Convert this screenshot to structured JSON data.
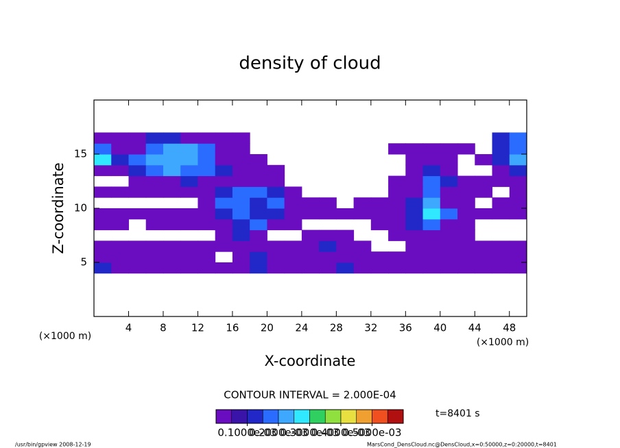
{
  "chart_data": {
    "type": "contour",
    "title": "density of cloud",
    "x_label": "X-coordinate",
    "y_label": "Z-coordinate",
    "x_unit": "(×1000 m)",
    "y_unit": "(×1000 m)",
    "xlim": [
      0,
      50
    ],
    "ylim": [
      0,
      20
    ],
    "xticks": [
      4,
      8,
      12,
      16,
      20,
      24,
      28,
      32,
      36,
      40,
      44,
      48
    ],
    "yticks": [
      5,
      10,
      15
    ],
    "x_edges": [
      0,
      2,
      4,
      6,
      8,
      10,
      12,
      14,
      16,
      18,
      20,
      22,
      24,
      26,
      28,
      30,
      32,
      34,
      36,
      38,
      40,
      42,
      44,
      46,
      48,
      50
    ],
    "z_edges": [
      4,
      5,
      6,
      7,
      8,
      9,
      10,
      11,
      12,
      13,
      14,
      15,
      16,
      17
    ],
    "z": [
      [
        0.00012,
        4e-05,
        4e-05,
        4e-05,
        4e-05,
        4e-05,
        4e-05,
        4e-05,
        4e-05,
        0.00012,
        4e-05,
        4e-05,
        4e-05,
        4e-05,
        0.00012,
        4e-05,
        4e-05,
        4e-05,
        4e-05,
        4e-05,
        4e-05,
        4e-05,
        4e-05,
        4e-05,
        4e-05
      ],
      [
        4e-05,
        4e-05,
        4e-05,
        4e-05,
        4e-05,
        4e-05,
        4e-05,
        null,
        4e-05,
        0.00012,
        4e-05,
        4e-05,
        4e-05,
        4e-05,
        4e-05,
        4e-05,
        4e-05,
        4e-05,
        4e-05,
        4e-05,
        4e-05,
        4e-05,
        4e-05,
        4e-05,
        4e-05
      ],
      [
        4e-05,
        4e-05,
        4e-05,
        4e-05,
        4e-05,
        4e-05,
        4e-05,
        4e-05,
        4e-05,
        4e-05,
        4e-05,
        4e-05,
        4e-05,
        0.00012,
        4e-05,
        4e-05,
        null,
        null,
        4e-05,
        4e-05,
        4e-05,
        4e-05,
        4e-05,
        4e-05,
        4e-05
      ],
      [
        null,
        null,
        null,
        null,
        null,
        null,
        null,
        4e-05,
        0.00012,
        4e-05,
        null,
        null,
        4e-05,
        4e-05,
        4e-05,
        null,
        null,
        4e-05,
        4e-05,
        4e-05,
        4e-05,
        4e-05,
        null,
        null,
        null
      ],
      [
        4e-05,
        4e-05,
        null,
        4e-05,
        4e-05,
        4e-05,
        4e-05,
        4e-05,
        0.00012,
        0.00017,
        4e-05,
        4e-05,
        null,
        null,
        null,
        null,
        4e-05,
        4e-05,
        0.00012,
        0.00017,
        4e-05,
        4e-05,
        null,
        null,
        null
      ],
      [
        4e-05,
        4e-05,
        4e-05,
        4e-05,
        4e-05,
        4e-05,
        4e-05,
        0.00012,
        0.00017,
        0.00012,
        0.00012,
        4e-05,
        4e-05,
        4e-05,
        4e-05,
        4e-05,
        4e-05,
        4e-05,
        0.00012,
        0.00027,
        0.00017,
        4e-05,
        4e-05,
        4e-05,
        4e-05
      ],
      [
        null,
        null,
        null,
        null,
        null,
        null,
        4e-05,
        0.00017,
        0.00017,
        0.00012,
        0.00017,
        4e-05,
        4e-05,
        4e-05,
        null,
        4e-05,
        4e-05,
        4e-05,
        0.00012,
        0.00022,
        4e-05,
        4e-05,
        null,
        4e-05,
        4e-05
      ],
      [
        4e-05,
        4e-05,
        4e-05,
        4e-05,
        4e-05,
        4e-05,
        4e-05,
        0.00012,
        0.00017,
        0.00017,
        0.00012,
        4e-05,
        null,
        null,
        null,
        null,
        null,
        4e-05,
        4e-05,
        0.00017,
        4e-05,
        4e-05,
        4e-05,
        null,
        4e-05
      ],
      [
        null,
        null,
        4e-05,
        4e-05,
        4e-05,
        0.00012,
        4e-05,
        4e-05,
        4e-05,
        4e-05,
        4e-05,
        null,
        null,
        null,
        null,
        null,
        null,
        4e-05,
        4e-05,
        0.00017,
        0.00012,
        4e-05,
        4e-05,
        4e-05,
        4e-05
      ],
      [
        4e-05,
        4e-05,
        0.00012,
        0.00017,
        0.00022,
        0.00017,
        0.00017,
        0.00012,
        4e-05,
        4e-05,
        4e-05,
        null,
        null,
        null,
        null,
        null,
        null,
        null,
        4e-05,
        0.00012,
        4e-05,
        null,
        null,
        4e-05,
        0.00012
      ],
      [
        0.00027,
        0.00012,
        0.00017,
        0.00022,
        0.00022,
        0.00022,
        0.00017,
        4e-05,
        4e-05,
        4e-05,
        null,
        null,
        null,
        null,
        null,
        null,
        null,
        null,
        4e-05,
        4e-05,
        4e-05,
        null,
        4e-05,
        0.00012,
        0.00022
      ],
      [
        0.00017,
        4e-05,
        4e-05,
        0.00017,
        0.00022,
        0.00022,
        0.00017,
        4e-05,
        4e-05,
        null,
        null,
        null,
        null,
        null,
        null,
        null,
        null,
        4e-05,
        4e-05,
        4e-05,
        4e-05,
        4e-05,
        null,
        0.00012,
        0.00017
      ],
      [
        4e-05,
        4e-05,
        4e-05,
        0.00012,
        0.00012,
        4e-05,
        4e-05,
        4e-05,
        4e-05,
        null,
        null,
        null,
        null,
        null,
        null,
        null,
        null,
        null,
        null,
        null,
        null,
        null,
        null,
        0.00012,
        0.00017
      ]
    ],
    "contour_interval": "CONTOUR INTERVAL = 2.000E-04",
    "time_label": "t=8401 s",
    "colorbar": {
      "levels": [
        0,
        5e-05,
        0.0001,
        0.00015,
        0.0002,
        0.00025,
        0.0003,
        0.00035,
        0.0004,
        0.00045,
        0.0005,
        0.00055,
        0.0006
      ],
      "colors": [
        "#6a0cc0",
        "#3a14a8",
        "#2228c8",
        "#2a6cff",
        "#3ea8ff",
        "#30e8ff",
        "#30d060",
        "#90e040",
        "#e8e040",
        "#f0a030",
        "#f05020",
        "#b01010"
      ],
      "ticks": [
        {
          "value": 0.0001,
          "label": "0.1000e-03"
        },
        {
          "value": 0.0002,
          "label": "0.2000e-03"
        },
        {
          "value": 0.0003,
          "label": "0.3000e-03"
        },
        {
          "value": 0.0004,
          "label": "0.4000e-03"
        },
        {
          "value": 0.0005,
          "label": "0.5000e-03"
        }
      ]
    },
    "footer_left": "/usr/bin/gpview  2008-12-19",
    "footer_right": "MarsCond_DensCloud.nc@DensCloud,x=0:50000,z=0:20000,t=8401"
  }
}
